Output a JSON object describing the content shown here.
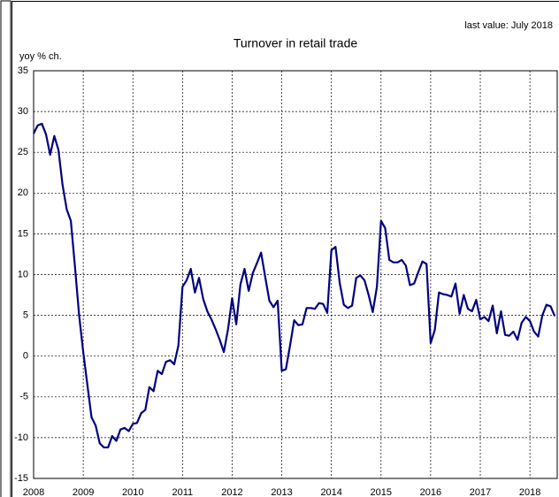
{
  "chart_data": {
    "type": "line",
    "title": "Turnover in retail trade",
    "subtitle": "last value: July 2018",
    "y_label": "yoy % ch.",
    "xlim": [
      2008,
      2018.55
    ],
    "xticks": [
      2008,
      2009,
      2010,
      2011,
      2012,
      2013,
      2014,
      2015,
      2016,
      2017,
      2018
    ],
    "ylim": [
      -15,
      35
    ],
    "yticks": [
      -15,
      -10,
      -5,
      0,
      5,
      10,
      15,
      20,
      25,
      30,
      35
    ],
    "grid": true,
    "color": "#000080",
    "x": [
      2008,
      2008.083,
      2008.167,
      2008.25,
      2008.333,
      2008.417,
      2008.5,
      2008.583,
      2008.667,
      2008.75,
      2008.833,
      2008.917,
      2009,
      2009.083,
      2009.167,
      2009.25,
      2009.333,
      2009.417,
      2009.5,
      2009.583,
      2009.667,
      2009.75,
      2009.833,
      2009.917,
      2010,
      2010.083,
      2010.167,
      2010.25,
      2010.333,
      2010.417,
      2010.5,
      2010.583,
      2010.667,
      2010.75,
      2010.833,
      2010.917,
      2011,
      2011.083,
      2011.167,
      2011.25,
      2011.333,
      2011.417,
      2011.5,
      2011.583,
      2011.667,
      2011.75,
      2011.833,
      2011.917,
      2012,
      2012.083,
      2012.167,
      2012.25,
      2012.333,
      2012.417,
      2012.5,
      2012.583,
      2012.667,
      2012.75,
      2012.833,
      2012.917,
      2013,
      2013.083,
      2013.167,
      2013.25,
      2013.333,
      2013.417,
      2013.5,
      2013.583,
      2013.667,
      2013.75,
      2013.833,
      2013.917,
      2014,
      2014.083,
      2014.167,
      2014.25,
      2014.333,
      2014.417,
      2014.5,
      2014.583,
      2014.667,
      2014.75,
      2014.833,
      2014.917,
      2015,
      2015.083,
      2015.167,
      2015.25,
      2015.333,
      2015.417,
      2015.5,
      2015.583,
      2015.667,
      2015.75,
      2015.833,
      2015.917,
      2016,
      2016.083,
      2016.167,
      2016.25,
      2016.333,
      2016.417,
      2016.5,
      2016.583,
      2016.667,
      2016.75,
      2016.833,
      2016.917,
      2017,
      2017.083,
      2017.167,
      2017.25,
      2017.333,
      2017.417,
      2017.5,
      2017.583,
      2017.667,
      2017.75,
      2017.833,
      2017.917,
      2018,
      2018.083,
      2018.167,
      2018.25,
      2018.333,
      2018.417,
      2018.5
    ],
    "values": [
      27.3,
      28.3,
      28.5,
      27.2,
      24.7,
      27.0,
      25.3,
      21,
      18,
      16.6,
      11,
      5,
      0.5,
      -3.5,
      -7.5,
      -8.5,
      -10.7,
      -11.2,
      -11.2,
      -9.8,
      -10.4,
      -9.0,
      -8.8,
      -9.2,
      -8.3,
      -8.2,
      -7.0,
      -6.6,
      -3.8,
      -4.3,
      -1.8,
      -2.2,
      -0.7,
      -0.5,
      -1.0,
      1.3,
      8.5,
      9.3,
      10.7,
      7.8,
      9.6,
      7.0,
      5.5,
      4.5,
      3.3,
      2.0,
      0.5,
      3.3,
      7.1,
      3.9,
      8.8,
      10.7,
      8.0,
      10.2,
      11.4,
      12.7,
      9.7,
      6.8,
      6.0,
      6.8,
      -1.8,
      -1.6,
      1.3,
      4.4,
      3.8,
      3.9,
      5.9,
      5.9,
      5.8,
      6.5,
      6.4,
      5.3,
      13.0,
      13.4,
      9.0,
      6.3,
      5.9,
      6.2,
      9.6,
      9.9,
      9.3,
      7.5,
      5.4,
      8.5,
      16.6,
      15.7,
      11.8,
      11.5,
      11.5,
      11.8,
      11.1,
      8.7,
      8.9,
      10.3,
      11.6,
      11.3,
      1.6,
      3.2,
      7.8,
      7.6,
      7.5,
      7.3,
      8.9,
      5.2,
      7.5,
      5.8,
      5.5,
      6.9,
      4.5,
      4.8,
      4.3,
      6.2,
      2.8,
      5.5,
      2.6,
      2.5,
      3.0,
      2.0,
      4.1,
      4.8,
      4.3,
      3.0,
      2.4,
      5.0,
      6.3,
      6.1,
      4.9
    ]
  }
}
